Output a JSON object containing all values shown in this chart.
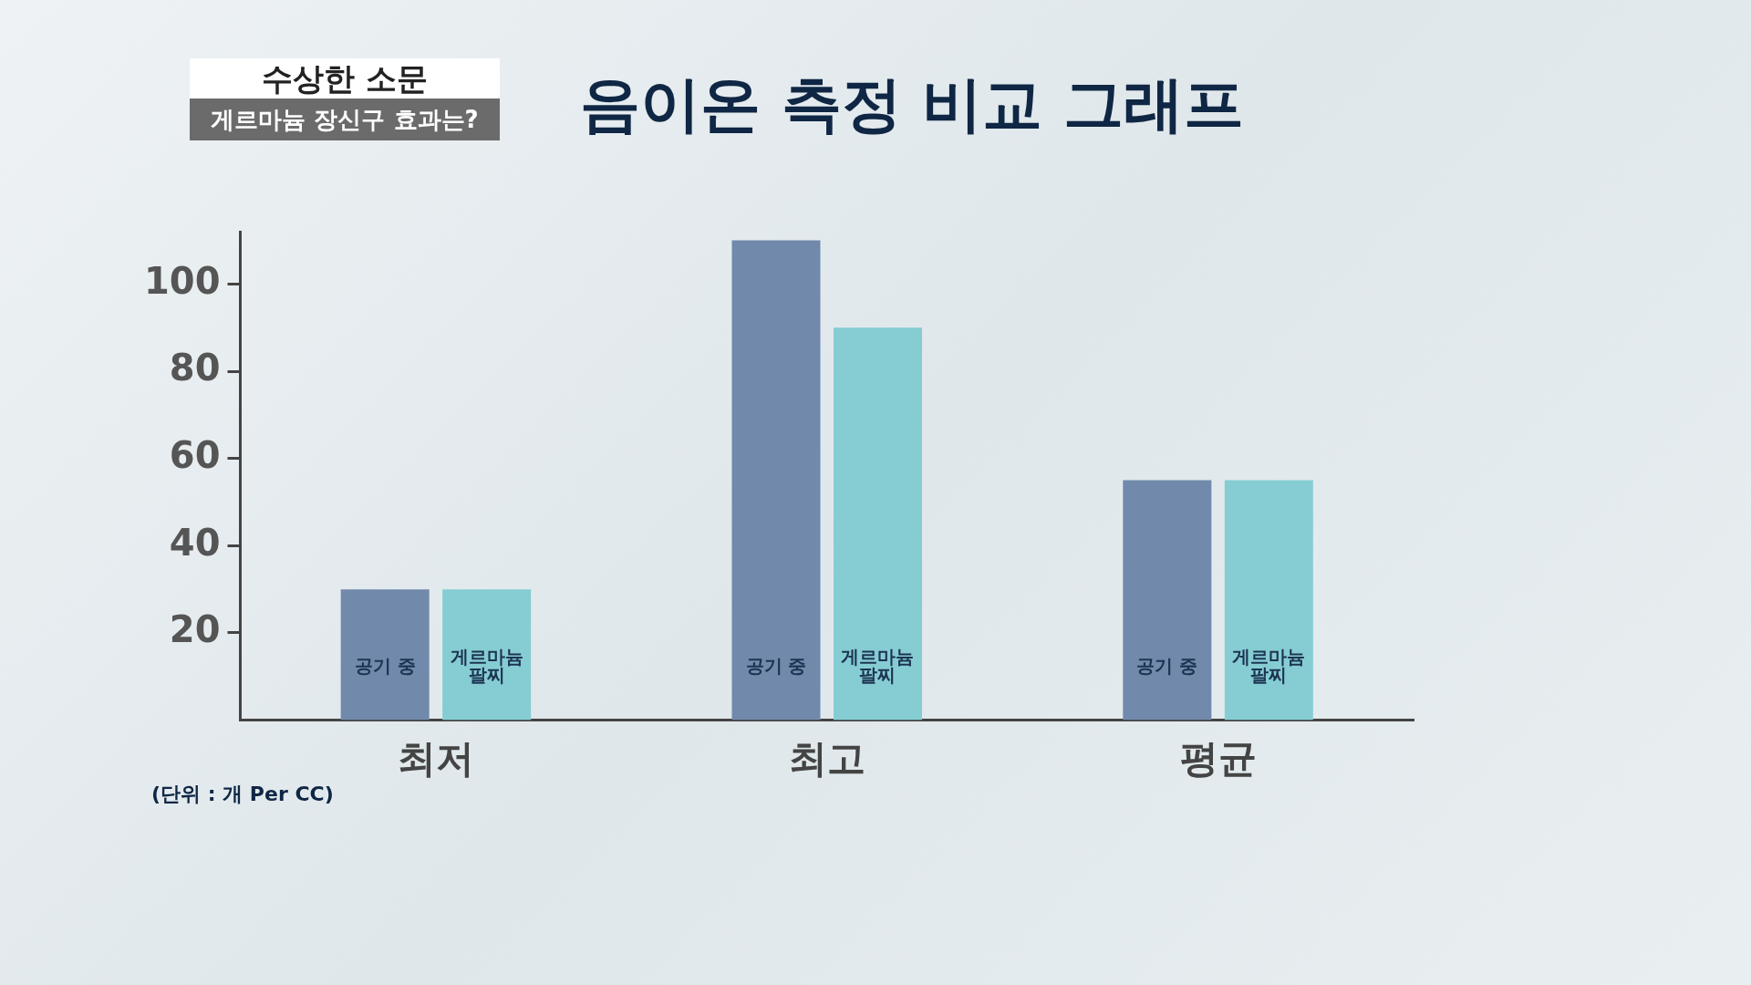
{
  "chart_data": {
    "type": "bar",
    "title": "음이온 측정 비교 그래프",
    "subtitle": "수상한 소문",
    "annotations": [
      "게르마늄 장신구 효과는?",
      "(단위 : 개 Per CC)"
    ],
    "categories": [
      "최저",
      "최고",
      "평균"
    ],
    "series": [
      {
        "name": "공기 중",
        "color": "#7189ab",
        "values": [
          30,
          110,
          55
        ]
      },
      {
        "name": "게르마늄 팔찌",
        "color": "#86cdd3",
        "values": [
          30,
          90,
          55
        ]
      }
    ],
    "ylim": [
      0,
      112
    ],
    "yticks": [
      20,
      40,
      60,
      80,
      100
    ],
    "grid": false,
    "legend": false
  }
}
